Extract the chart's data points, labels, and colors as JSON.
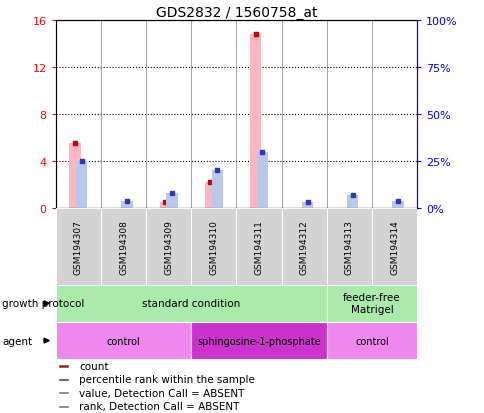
{
  "title": "GDS2832 / 1560758_at",
  "samples": [
    "GSM194307",
    "GSM194308",
    "GSM194309",
    "GSM194310",
    "GSM194311",
    "GSM194312",
    "GSM194313",
    "GSM194314"
  ],
  "absent_count": [
    5.5,
    0.0,
    0.55,
    2.2,
    14.8,
    0.0,
    0.0,
    0.0
  ],
  "absent_rank": [
    25,
    4,
    8,
    20,
    30,
    3,
    7,
    4
  ],
  "ylim_left": [
    0,
    16
  ],
  "ylim_right": [
    0,
    100
  ],
  "yticks_left": [
    0,
    4,
    8,
    12,
    16
  ],
  "yticks_right": [
    0,
    25,
    50,
    75,
    100
  ],
  "ytick_labels_left": [
    "0",
    "4",
    "8",
    "12",
    "16"
  ],
  "ytick_labels_right": [
    "0%",
    "25%",
    "50%",
    "75%",
    "100%"
  ],
  "growth_protocol_groups": [
    {
      "label": "standard condition",
      "start": 0,
      "end": 6,
      "color": "#aaeaaa"
    },
    {
      "label": "feeder-free\nMatrigel",
      "start": 6,
      "end": 8,
      "color": "#aaeaaa"
    }
  ],
  "agent_groups": [
    {
      "label": "control",
      "start": 0,
      "end": 3,
      "color": "#ee88ee"
    },
    {
      "label": "sphingosine-1-phosphate",
      "start": 3,
      "end": 6,
      "color": "#cc33cc"
    },
    {
      "label": "control",
      "start": 6,
      "end": 8,
      "color": "#ee88ee"
    }
  ],
  "legend_items": [
    {
      "label": "count",
      "color": "#cc0000"
    },
    {
      "label": "percentile rank within the sample",
      "color": "#0000cc"
    },
    {
      "label": "value, Detection Call = ABSENT",
      "color": "#ffb6c1"
    },
    {
      "label": "rank, Detection Call = ABSENT",
      "color": "#b0c4de"
    }
  ],
  "color_count_bar": "#ffb6c1",
  "color_rank_bar": "#b8c8e8",
  "color_count_dot": "#cc0000",
  "color_rank_dot": "#3333bb",
  "bg_color": "#d3d3d3",
  "bar_width": 0.25
}
